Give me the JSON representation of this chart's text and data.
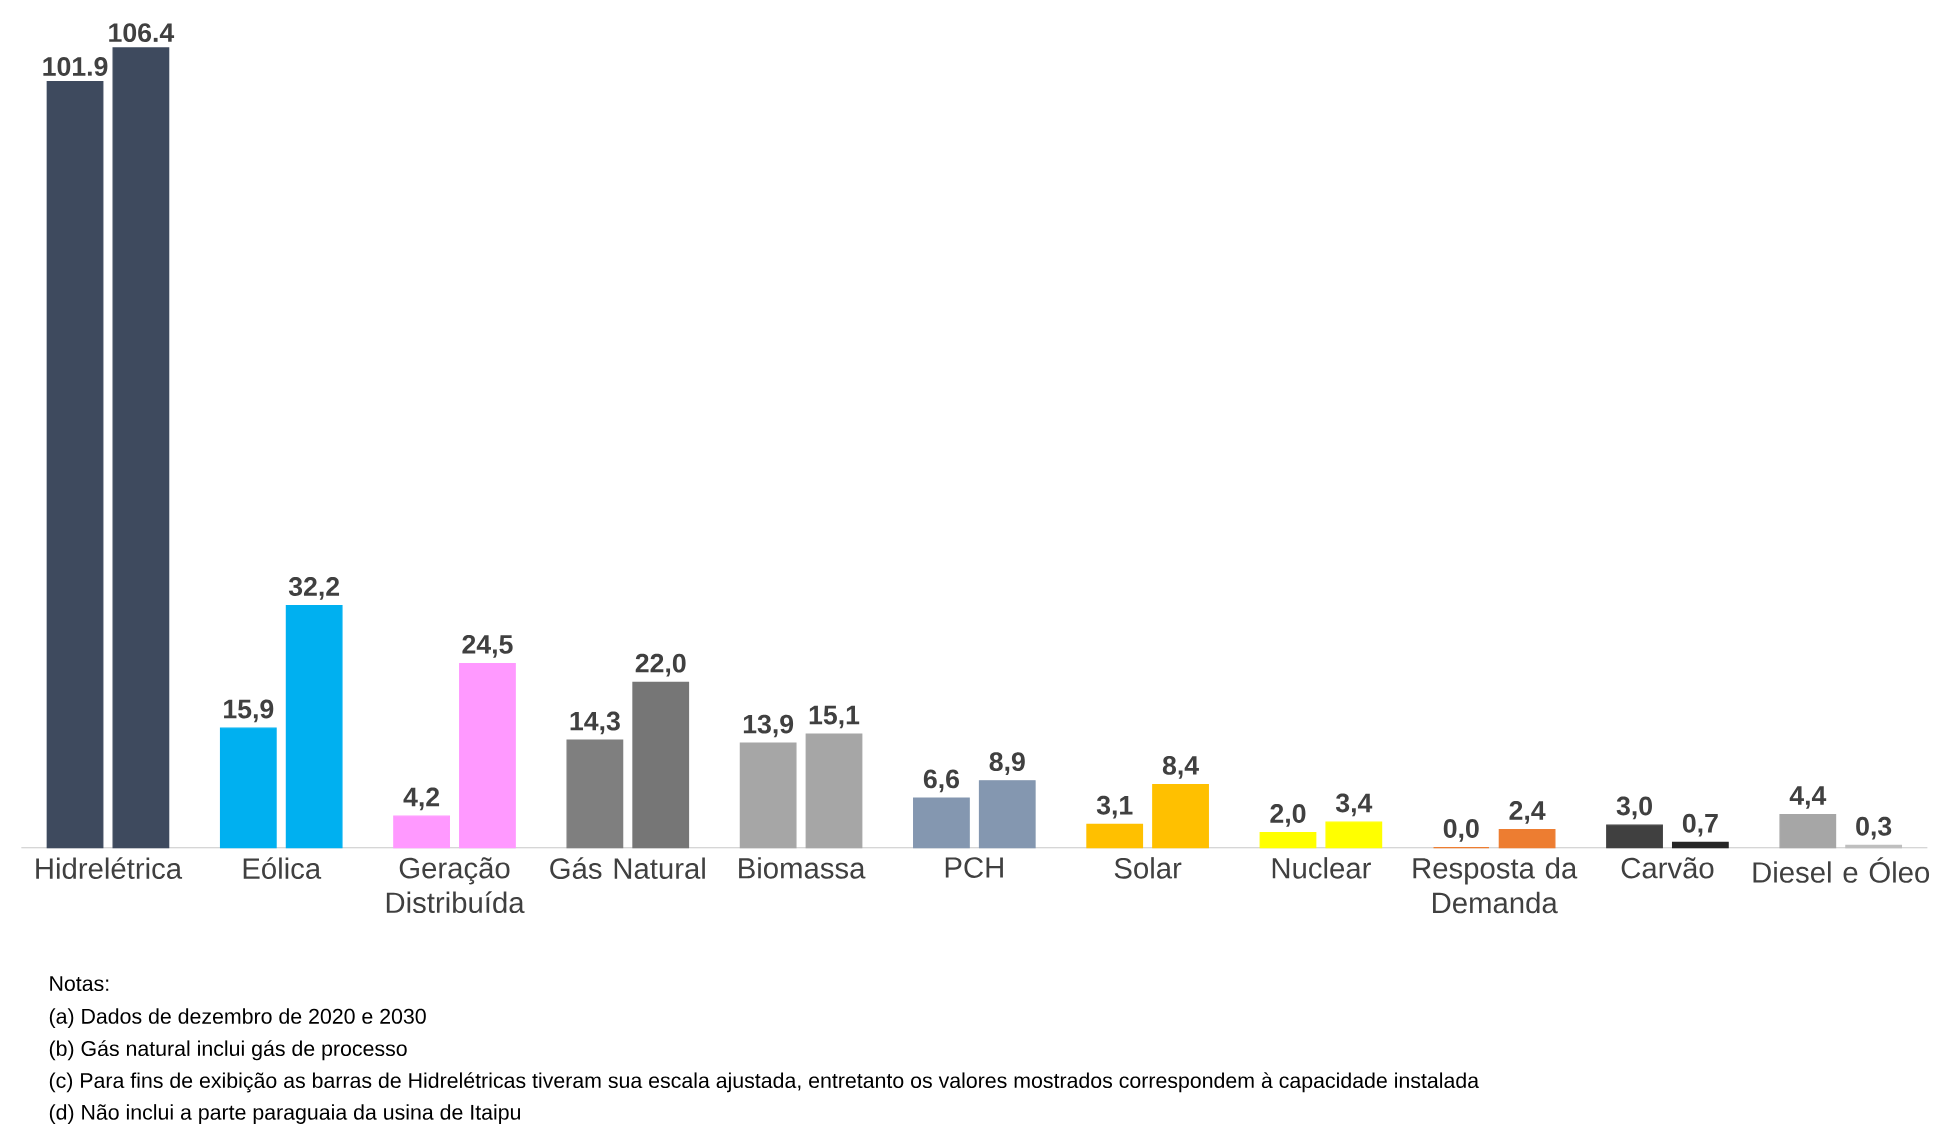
{
  "chart_data": {
    "type": "bar",
    "categories": [
      "Hidrelétrica",
      "Eólica",
      "Geração Distribuída",
      "Gás Natural",
      "Biomassa",
      "PCH",
      "Solar",
      "Nuclear",
      "Resposta da Demanda",
      "Carvão",
      "Diesel e Óleo"
    ],
    "series": [
      {
        "values": [
          101.9,
          15.9,
          4.2,
          14.3,
          13.9,
          6.6,
          3.1,
          2.0,
          0.0,
          3.0,
          4.4
        ],
        "colors": [
          "#3e4a5e",
          "#00b0f0",
          "#ff99ff",
          "#7f7f7f",
          "#a6a6a6",
          "#8497b0",
          "#ffc000",
          "#ffff00",
          "#ed7d31",
          "#404040",
          "#a6a6a6"
        ],
        "value_labels": [
          "101.9",
          "15,9",
          "4,2",
          "14,3",
          "13,9",
          "6,6",
          "3,1",
          "2,0",
          "0,0",
          "3,0",
          "4,4"
        ]
      },
      {
        "values": [
          106.4,
          32.2,
          24.5,
          22.0,
          15.1,
          8.9,
          8.4,
          3.4,
          2.4,
          0.7,
          0.3
        ],
        "colors": [
          "#3e4a5e",
          "#00b0f0",
          "#ff99ff",
          "#767676",
          "#a6a6a6",
          "#8497b0",
          "#ffc000",
          "#ffff00",
          "#ed7d31",
          "#262626",
          "#bfbfbf"
        ],
        "value_labels": [
          "106.4",
          "32,2",
          "24,5",
          "22,0",
          "15,1",
          "8,9",
          "8,4",
          "3,4",
          "2,4",
          "0,7",
          "0,3"
        ]
      }
    ],
    "tick_labels": "x",
    "annotations": [
      "Notas:",
      "(a) Dados de dezembro de 2020 e 2030",
      "(b) Gás natural inclui gás de processo",
      "(c) Para fins de exibição as barras de Hidrelétricas tiveram sua escala ajustada, entretanto os valores mostrados correspondem à capacidade instalada",
      "(d) Não inclui a parte paraguaia da usina de Itaipu"
    ]
  }
}
